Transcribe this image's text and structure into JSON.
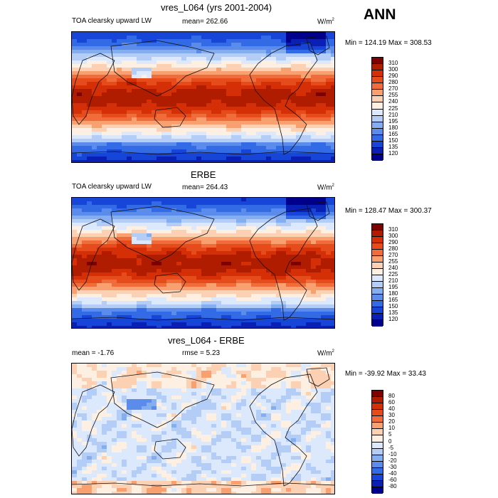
{
  "season": "ANN",
  "panels": [
    {
      "title": "vres_L064 (yrs 2001-2004)",
      "left": "TOA clearsky upward LW",
      "mid": "mean= 262.66",
      "units_base": "W/m",
      "units_exp": "2",
      "minmax": "Min = 124.19 Max = 308.53",
      "field": "model"
    },
    {
      "title": "ERBE",
      "left": "TOA clearsky upward LW",
      "mid": "mean= 264.43",
      "units_base": "W/m",
      "units_exp": "2",
      "minmax": "Min = 128.47 Max = 300.37",
      "field": "obs"
    },
    {
      "title": "vres_L064 - ERBE",
      "left": "mean =  -1.76",
      "mid": "rmse =  5.23",
      "units_base": "W/m",
      "units_exp": "2",
      "minmax": "Min = -39.92 Max =  33.43",
      "field": "diff"
    }
  ],
  "chart_data": [
    {
      "type": "heatmap",
      "title": "vres_L064 (yrs 2001-2004)",
      "subtitle": "TOA clearsky upward LW",
      "mean": 262.66,
      "min": 124.19,
      "max": 308.53,
      "levels": [
        120,
        135,
        150,
        165,
        180,
        195,
        210,
        225,
        240,
        255,
        270,
        280,
        290,
        300,
        310
      ]
    },
    {
      "type": "heatmap",
      "title": "ERBE",
      "subtitle": "TOA clearsky upward LW",
      "mean": 264.43,
      "min": 128.47,
      "max": 300.37,
      "levels": [
        120,
        135,
        150,
        165,
        180,
        195,
        210,
        225,
        240,
        255,
        270,
        280,
        290,
        300,
        310
      ]
    },
    {
      "type": "heatmap",
      "title": "vres_L064 - ERBE",
      "mean": -1.76,
      "rmse": 5.23,
      "min": -39.92,
      "max": 33.43,
      "levels": [
        -80,
        -60,
        -40,
        -30,
        -20,
        -10,
        -5,
        0,
        5,
        10,
        20,
        30,
        40,
        60,
        80
      ]
    }
  ],
  "colorbars": {
    "abs": {
      "labels": [
        "310",
        "300",
        "290",
        "280",
        "270",
        "255",
        "240",
        "225",
        "210",
        "195",
        "180",
        "165",
        "150",
        "135",
        "120"
      ],
      "colors": [
        "#7f0000",
        "#b01c00",
        "#d42f07",
        "#e64b1c",
        "#f06d3b",
        "#f8a070",
        "#fcd0b2",
        "#fdf0e3",
        "#dce8fb",
        "#b3cdf6",
        "#85aef0",
        "#5b8ceb",
        "#336ae6",
        "#1745d8",
        "#0a1fb3",
        "#00008c"
      ]
    },
    "diff": {
      "labels": [
        "80",
        "60",
        "40",
        "30",
        "20",
        "10",
        "5",
        "0",
        "-5",
        "-10",
        "-20",
        "-30",
        "-40",
        "-60",
        "-80"
      ],
      "colors": [
        "#7f0000",
        "#b01c00",
        "#d42f07",
        "#e64b1c",
        "#f06d3b",
        "#f8a070",
        "#fcd0b2",
        "#fdf0e3",
        "#dce8fb",
        "#b3cdf6",
        "#85aef0",
        "#5b8ceb",
        "#336ae6",
        "#1745d8",
        "#0a1fb3",
        "#00008c"
      ]
    }
  }
}
